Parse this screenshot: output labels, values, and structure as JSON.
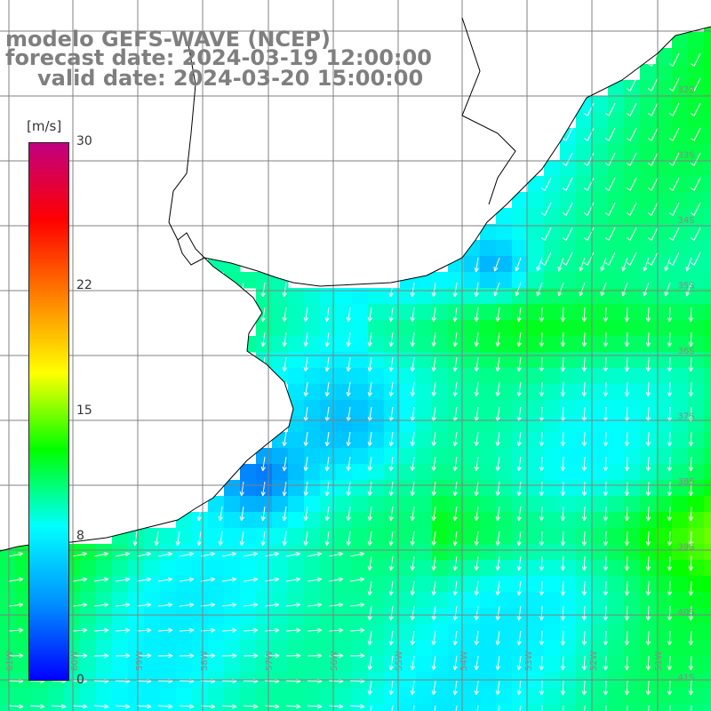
{
  "titles": {
    "line1": "modelo GEFS-WAVE (NCEP)",
    "line2": "forecast date: 2024-03-19 12:00:00",
    "line3": "valid date: 2024-03-20 15:00:00"
  },
  "colorbar": {
    "units": "[m/s]",
    "ticks": [
      "30",
      "22",
      "15",
      "8",
      "0"
    ],
    "tick_values": [
      30,
      22,
      15,
      8,
      0
    ],
    "min": 0,
    "max": 30,
    "colors": [
      "#0000ff",
      "#0090ff",
      "#00ffff",
      "#00ff00",
      "#ffff00",
      "#ff8000",
      "#ff0000",
      "#c00080"
    ]
  },
  "map": {
    "lat_labels": [
      "32S",
      "33S",
      "34S",
      "35S",
      "36S",
      "37S",
      "38S",
      "39S",
      "40S",
      "41S"
    ],
    "lon_labels": [
      "61W",
      "60W",
      "59W",
      "58W",
      "57W",
      "56W",
      "55W",
      "54W",
      "53W",
      "52W",
      "51W"
    ],
    "field": "wind speed and direction",
    "colors": {
      "coast": "#000000",
      "grid": "#808080",
      "arrows": "#ffffff",
      "title": "#7f7f7f"
    }
  }
}
